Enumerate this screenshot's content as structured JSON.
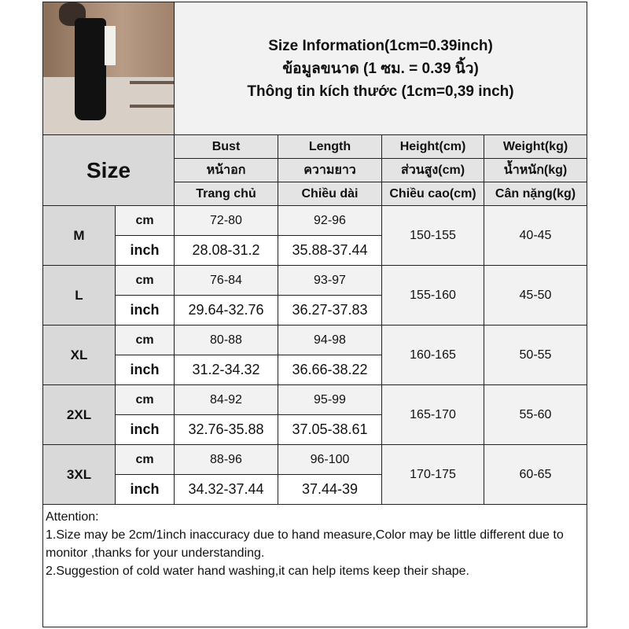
{
  "title_lines": [
    "Size Information(1cm=0.39inch)",
    "ข้อมูลขนาด (1 ซม. = 0.39 นิ้ว)",
    "Thông tin kích thước (1cm=0,39 inch)"
  ],
  "size_label": "Size",
  "columns": [
    {
      "en": "Bust",
      "th": "หน้าอก",
      "vi": "Trang chủ"
    },
    {
      "en": "Length",
      "th": "ความยาว",
      "vi": "Chiều dài"
    },
    {
      "en": "Height(cm)",
      "th": "ส่วนสูง(cm)",
      "vi": "Chiều cao(cm)"
    },
    {
      "en": "Weight(kg)",
      "th": "น้ำหนัก(kg)",
      "vi": "Cân nặng(kg)"
    }
  ],
  "units": {
    "cm": "cm",
    "inch": "inch"
  },
  "rows": [
    {
      "size": "M",
      "bust_cm": "72-80",
      "length_cm": "92-96",
      "bust_in": "28.08-31.2",
      "length_in": "35.88-37.44",
      "height": "150-155",
      "weight": "40-45"
    },
    {
      "size": "L",
      "bust_cm": "76-84",
      "length_cm": "93-97",
      "bust_in": "29.64-32.76",
      "length_in": "36.27-37.83",
      "height": "155-160",
      "weight": "45-50"
    },
    {
      "size": "XL",
      "bust_cm": "80-88",
      "length_cm": "94-98",
      "bust_in": "31.2-34.32",
      "length_in": "36.66-38.22",
      "height": "160-165",
      "weight": "50-55"
    },
    {
      "size": "2XL",
      "bust_cm": "84-92",
      "length_cm": "95-99",
      "bust_in": "32.76-35.88",
      "length_in": "37.05-38.61",
      "height": "165-170",
      "weight": "55-60"
    },
    {
      "size": "3XL",
      "bust_cm": "88-96",
      "length_cm": "96-100",
      "bust_in": "34.32-37.44",
      "length_in": "37.44-39",
      "height": "170-175",
      "weight": "60-65"
    }
  ],
  "attention": {
    "heading": "Attention:",
    "lines": [
      "1.Size may be 2cm/1inch inaccuracy due to hand measure,Color may be little different due to monitor ,thanks for your understanding.",
      "2.Suggestion of cold water hand washing,it can help items keep their shape."
    ]
  }
}
